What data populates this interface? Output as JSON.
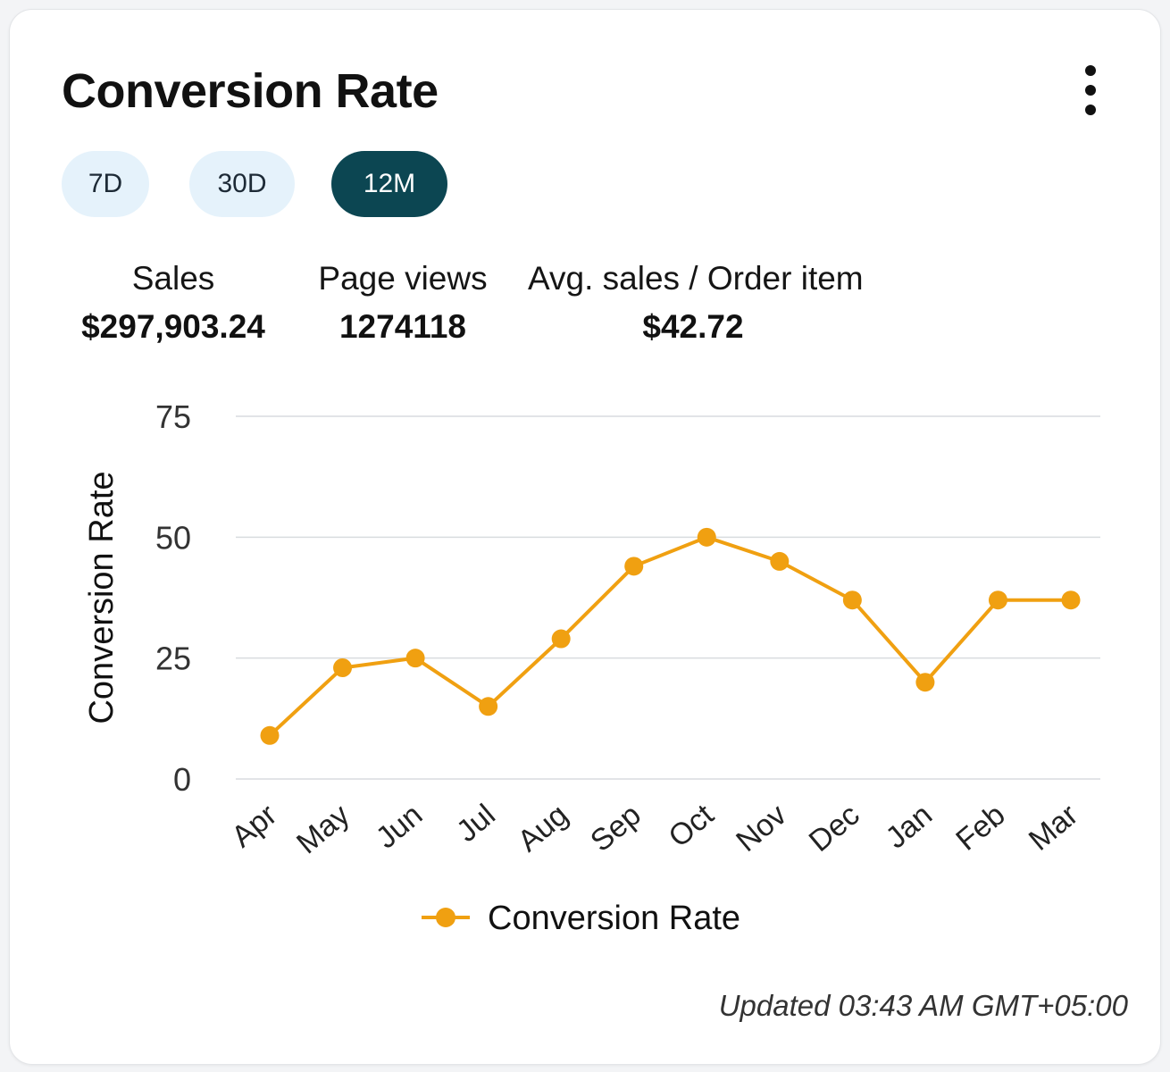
{
  "card": {
    "title": "Conversion Rate",
    "menu_icon": "more-vertical-icon"
  },
  "ranges": [
    {
      "label": "7D",
      "active": false
    },
    {
      "label": "30D",
      "active": false
    },
    {
      "label": "12M",
      "active": true
    }
  ],
  "stats": {
    "sales": {
      "label": "Sales",
      "value": "$297,903.24"
    },
    "page_views": {
      "label": "Page views",
      "value": "1274118"
    },
    "avg_sales": {
      "label": "Avg. sales / Order item",
      "value": "$42.72"
    }
  },
  "chart_data": {
    "type": "line",
    "categories": [
      "Apr",
      "May",
      "Jun",
      "Jul",
      "Aug",
      "Sep",
      "Oct",
      "Nov",
      "Dec",
      "Jan",
      "Feb",
      "Mar"
    ],
    "series": [
      {
        "name": "Conversion Rate",
        "values": [
          9,
          23,
          25,
          15,
          29,
          44,
          50,
          45,
          37,
          20,
          37,
          37
        ],
        "color": "#f0a011"
      }
    ],
    "ylabel": "Conversion Rate",
    "ylim": [
      0,
      75
    ],
    "yticks": [
      0,
      25,
      50,
      75
    ],
    "grid": true,
    "legend_position": "bottom"
  },
  "footer": {
    "updated": "Updated 03:43 AM GMT+05:00"
  }
}
